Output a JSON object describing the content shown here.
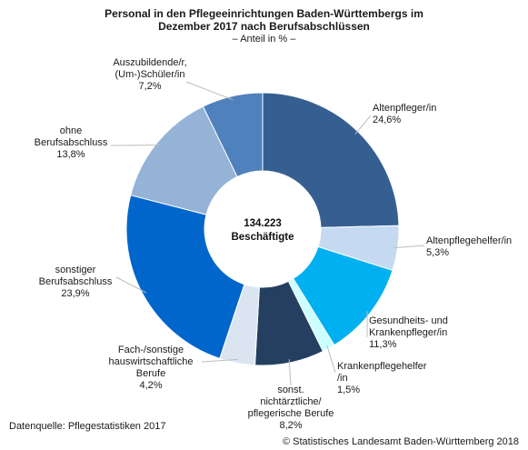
{
  "header": {
    "title_line1": "Personal in den Pflegeeinrichtungen Baden-Württembergs im",
    "title_line2": "Dezember 2017 nach Berufsabschlüssen",
    "subtitle": "– Anteil in % –"
  },
  "center": {
    "line1": "134.223",
    "line2": "Beschäftigte"
  },
  "footer": {
    "source": "Datenquelle: Pflegestatistiken 2017",
    "copyright": "© Statistisches Landesamt Baden-Württemberg 2018"
  },
  "chart_data": {
    "type": "pie",
    "variant": "donut",
    "title": "Personal in den Pflegeeinrichtungen Baden-Württembergs im Dezember 2017 nach Berufsabschlüssen",
    "subtitle": "– Anteil in % –",
    "center_label": "134.223 Beschäftigte",
    "slices": [
      {
        "label": [
          "Altenpfleger/in"
        ],
        "value": 24.6,
        "value_label": "24,6%",
        "color": "#365f91"
      },
      {
        "label": [
          "Altenpflegehelfer/in"
        ],
        "value": 5.3,
        "value_label": "5,3%",
        "color": "#c5d9f1"
      },
      {
        "label": [
          "Gesundheits- und",
          "Krankenpfleger/in"
        ],
        "value": 11.3,
        "value_label": "11,3%",
        "color": "#00b0f0"
      },
      {
        "label": [
          "Krankenpflegehelfer",
          "/in"
        ],
        "value": 1.5,
        "value_label": "1,5%",
        "color": "#ccffff"
      },
      {
        "label": [
          "sonst.",
          "nichtärztliche/",
          "pflegerische Berufe"
        ],
        "value": 8.2,
        "value_label": "8,2%",
        "color": "#243f60"
      },
      {
        "label": [
          "Fach-/sonstige",
          "hauswirtschaftliche",
          "Berufe"
        ],
        "value": 4.2,
        "value_label": "4,2%",
        "color": "#dbe5f1"
      },
      {
        "label": [
          "sonstiger",
          "Berufsabschluss"
        ],
        "value": 23.9,
        "value_label": "23,9%",
        "color": "#0066cc"
      },
      {
        "label": [
          "ohne",
          "Berufsabschluss"
        ],
        "value": 13.8,
        "value_label": "13,8%",
        "color": "#95b3d7"
      },
      {
        "label": [
          "Auszubildende/r,",
          "(Um-)Schüler/in"
        ],
        "value": 7.2,
        "value_label": "7,2%",
        "color": "#4f81bd"
      }
    ]
  }
}
